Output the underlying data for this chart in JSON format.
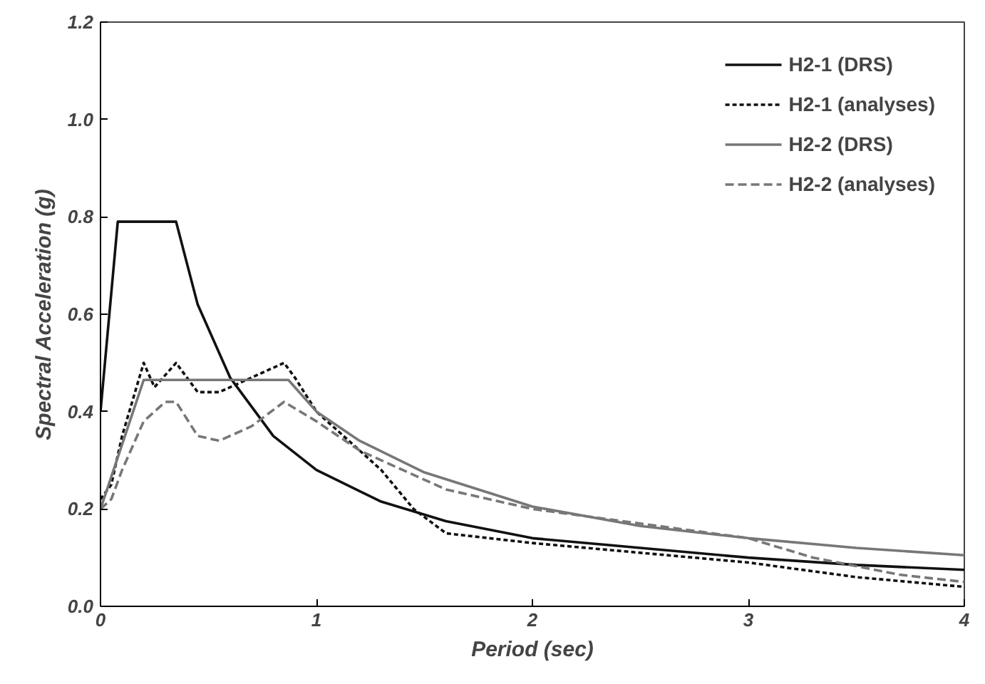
{
  "chart_data": {
    "type": "line",
    "xlabel": "Period (sec)",
    "ylabel": "Spectral Acceleration (g)",
    "xlim": [
      0,
      4
    ],
    "ylim": [
      0,
      1.2
    ],
    "xticks": [
      0,
      1,
      2,
      3,
      4
    ],
    "yticks": [
      {
        "value": 0,
        "label": "0.0"
      },
      {
        "value": 0.2,
        "label": "0.2"
      },
      {
        "value": 0.4,
        "label": "0.4"
      },
      {
        "value": 0.6,
        "label": "0.6"
      },
      {
        "value": 0.8,
        "label": "0.8"
      },
      {
        "value": 1.0,
        "label": "1.0"
      },
      {
        "value": 1.2,
        "label": "1.2"
      }
    ],
    "grid": false,
    "legend": "top right",
    "marker": "none",
    "series": [
      {
        "name": "H2-1 (DRS)",
        "color": "#111111",
        "line_style": "solid",
        "x": [
          0,
          0.08,
          0.35,
          0.45,
          0.6,
          0.8,
          1.0,
          1.3,
          1.6,
          2.0,
          2.5,
          3.0,
          3.5,
          4.0
        ],
        "values": [
          0.4,
          0.79,
          0.79,
          0.62,
          0.47,
          0.35,
          0.28,
          0.215,
          0.175,
          0.14,
          0.12,
          0.1,
          0.085,
          0.075
        ]
      },
      {
        "name": "H2-1 (analyses)",
        "color": "#111111",
        "line_style": "dotted",
        "x": [
          0,
          0.05,
          0.1,
          0.2,
          0.25,
          0.35,
          0.45,
          0.55,
          0.65,
          0.75,
          0.85,
          0.9,
          1.0,
          1.15,
          1.3,
          1.45,
          1.6,
          1.8,
          2.0,
          2.5,
          3.0,
          3.5,
          4.0
        ],
        "values": [
          0.22,
          0.25,
          0.35,
          0.5,
          0.45,
          0.5,
          0.44,
          0.44,
          0.46,
          0.48,
          0.5,
          0.47,
          0.4,
          0.34,
          0.28,
          0.2,
          0.15,
          0.14,
          0.13,
          0.11,
          0.09,
          0.06,
          0.04
        ]
      },
      {
        "name": "H2-2 (DRS)",
        "color": "#777777",
        "line_style": "solid",
        "x": [
          0,
          0.2,
          0.87,
          1.0,
          1.2,
          1.5,
          2.0,
          2.5,
          3.0,
          3.5,
          4.0
        ],
        "values": [
          0.2,
          0.465,
          0.465,
          0.4,
          0.34,
          0.275,
          0.205,
          0.165,
          0.14,
          0.12,
          0.105
        ]
      },
      {
        "name": "H2-2 (analyses)",
        "color": "#777777",
        "line_style": "dashed",
        "x": [
          0,
          0.05,
          0.1,
          0.2,
          0.3,
          0.35,
          0.45,
          0.55,
          0.7,
          0.85,
          1.0,
          1.2,
          1.4,
          1.6,
          2.0,
          2.5,
          3.0,
          3.3,
          3.7,
          4.0
        ],
        "values": [
          0.2,
          0.22,
          0.28,
          0.38,
          0.42,
          0.42,
          0.35,
          0.34,
          0.37,
          0.42,
          0.38,
          0.32,
          0.28,
          0.24,
          0.2,
          0.17,
          0.14,
          0.1,
          0.065,
          0.05
        ]
      }
    ]
  }
}
